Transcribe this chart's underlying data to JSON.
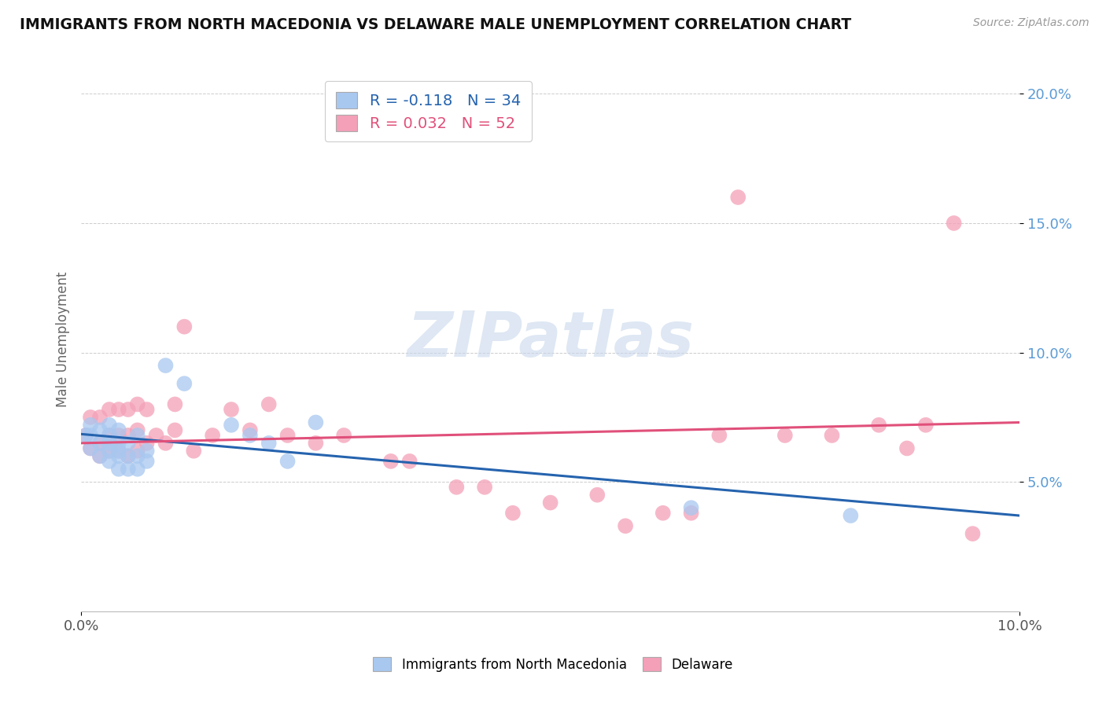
{
  "title": "IMMIGRANTS FROM NORTH MACEDONIA VS DELAWARE MALE UNEMPLOYMENT CORRELATION CHART",
  "source": "Source: ZipAtlas.com",
  "ylabel": "Male Unemployment",
  "xlabel": "",
  "xlim": [
    0.0,
    0.1
  ],
  "ylim": [
    0.0,
    0.21
  ],
  "xticks": [
    0.0,
    0.1
  ],
  "xticklabels": [
    "0.0%",
    "10.0%"
  ],
  "yticks": [
    0.05,
    0.1,
    0.15,
    0.2
  ],
  "yticklabels": [
    "5.0%",
    "10.0%",
    "15.0%",
    "20.0%"
  ],
  "series1_label": "Immigrants from North Macedonia",
  "series1_color": "#a8c8f0",
  "series1_R": -0.118,
  "series1_N": 34,
  "series2_label": "Delaware",
  "series2_color": "#f4a0b8",
  "series2_R": 0.032,
  "series2_N": 52,
  "watermark": "ZIPatlas",
  "blue_scatter_x": [
    0.0005,
    0.001,
    0.001,
    0.001,
    0.002,
    0.002,
    0.002,
    0.003,
    0.003,
    0.003,
    0.003,
    0.003,
    0.004,
    0.004,
    0.004,
    0.004,
    0.004,
    0.005,
    0.005,
    0.005,
    0.006,
    0.006,
    0.006,
    0.007,
    0.007,
    0.009,
    0.011,
    0.016,
    0.018,
    0.02,
    0.022,
    0.025,
    0.065,
    0.082
  ],
  "blue_scatter_y": [
    0.068,
    0.063,
    0.068,
    0.072,
    0.06,
    0.065,
    0.07,
    0.058,
    0.062,
    0.065,
    0.068,
    0.072,
    0.055,
    0.06,
    0.062,
    0.065,
    0.07,
    0.055,
    0.06,
    0.065,
    0.055,
    0.06,
    0.068,
    0.058,
    0.062,
    0.095,
    0.088,
    0.072,
    0.068,
    0.065,
    0.058,
    0.073,
    0.04,
    0.037
  ],
  "pink_scatter_x": [
    0.0005,
    0.001,
    0.001,
    0.002,
    0.002,
    0.002,
    0.003,
    0.003,
    0.003,
    0.004,
    0.004,
    0.004,
    0.005,
    0.005,
    0.005,
    0.006,
    0.006,
    0.006,
    0.007,
    0.007,
    0.008,
    0.009,
    0.01,
    0.01,
    0.011,
    0.012,
    0.014,
    0.016,
    0.018,
    0.02,
    0.022,
    0.025,
    0.028,
    0.033,
    0.035,
    0.04,
    0.043,
    0.046,
    0.05,
    0.055,
    0.058,
    0.062,
    0.065,
    0.068,
    0.07,
    0.075,
    0.08,
    0.085,
    0.088,
    0.09,
    0.093,
    0.095
  ],
  "pink_scatter_y": [
    0.068,
    0.063,
    0.075,
    0.06,
    0.065,
    0.075,
    0.062,
    0.068,
    0.078,
    0.062,
    0.068,
    0.078,
    0.06,
    0.068,
    0.078,
    0.062,
    0.07,
    0.08,
    0.065,
    0.078,
    0.068,
    0.065,
    0.07,
    0.08,
    0.11,
    0.062,
    0.068,
    0.078,
    0.07,
    0.08,
    0.068,
    0.065,
    0.068,
    0.058,
    0.058,
    0.048,
    0.048,
    0.038,
    0.042,
    0.045,
    0.033,
    0.038,
    0.038,
    0.068,
    0.16,
    0.068,
    0.068,
    0.072,
    0.063,
    0.072,
    0.15,
    0.03
  ]
}
